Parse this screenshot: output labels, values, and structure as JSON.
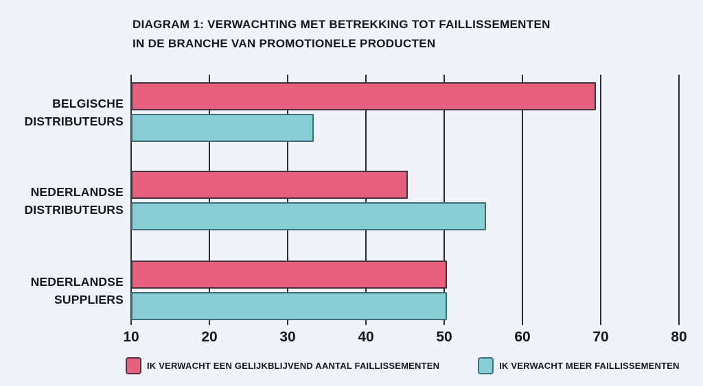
{
  "page": {
    "background_color": "#F1F3FB",
    "text_color": "#16171B"
  },
  "chart_data": {
    "type": "bar",
    "orientation": "horizontal",
    "title": "DIAGRAM 1: VERWACHTING MET BETREKKING TOT FAILLISSEMENTEN IN DE BRANCHE VAN PROMOTIONELE PRODUCTEN",
    "title_lines": [
      "DIAGRAM 1: VERWACHTING MET BETREKKING TOT FAILLISSEMENTEN",
      "IN DE BRANCHE VAN PROMOTIONELE PRODUCTEN"
    ],
    "categories": [
      "BELGISCHE DISTRIBUTEURS",
      "NEDERLANDSE DISTRIBUTEURS",
      "NEDERLANDSE SUPPLIERS"
    ],
    "category_lines": [
      [
        "BELGISCHE",
        "DISTRIBUTEURS"
      ],
      [
        "NEDERLANDSE",
        "DISTRIBUTEURS"
      ],
      [
        "NEDERLANDSE",
        "SUPPLIERS"
      ]
    ],
    "series": [
      {
        "name": "IK VERWACHT EEN GELIJKBLIJVEND AANTAL FAILLISSEMENTEN",
        "color": "#E7617E",
        "values": [
          69,
          45,
          50
        ]
      },
      {
        "name": "IK VERWACHT MEER FAILLISSEMENTEN",
        "color": "#87CED7",
        "values": [
          33,
          55,
          50
        ]
      }
    ],
    "x_axis": {
      "min": 10,
      "max": 80,
      "ticks": [
        10,
        20,
        30,
        40,
        50,
        60,
        70,
        80
      ]
    },
    "grid": "vertical-gridlines-on",
    "gridline_color": "#2C2C33",
    "legend_position": "bottom"
  }
}
